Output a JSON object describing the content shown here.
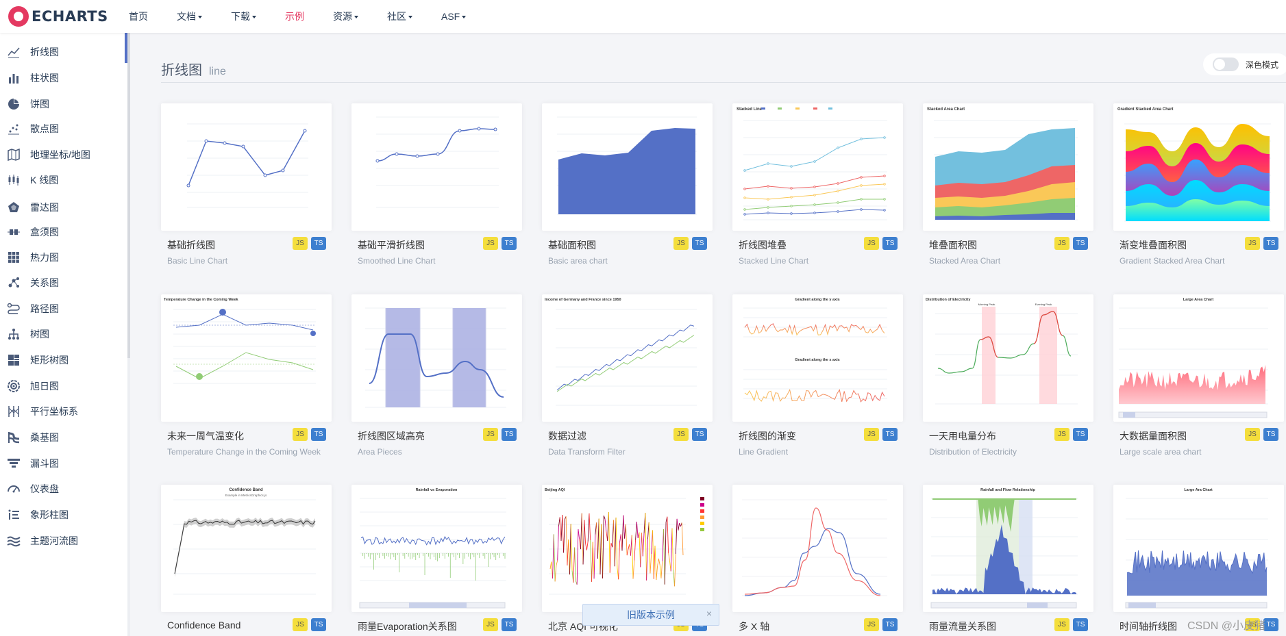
{
  "brand": {
    "logo_text": "ECHARTS",
    "accent": "#e43961",
    "chart_blue": "#5470c6"
  },
  "nav": [
    {
      "label": "首页",
      "has_menu": false,
      "active": false
    },
    {
      "label": "文档",
      "has_menu": true,
      "active": false
    },
    {
      "label": "下载",
      "has_menu": true,
      "active": false
    },
    {
      "label": "示例",
      "has_menu": false,
      "active": true
    },
    {
      "label": "资源",
      "has_menu": true,
      "active": false
    },
    {
      "label": "社区",
      "has_menu": true,
      "active": false
    },
    {
      "label": "ASF",
      "has_menu": true,
      "active": false
    }
  ],
  "sidebar": {
    "items": [
      {
        "label": "折线图",
        "icon": "line-chart-icon"
      },
      {
        "label": "柱状图",
        "icon": "bar-chart-icon"
      },
      {
        "label": "饼图",
        "icon": "pie-chart-icon"
      },
      {
        "label": "散点图",
        "icon": "scatter-chart-icon"
      },
      {
        "label": "地理坐标/地图",
        "icon": "map-icon"
      },
      {
        "label": "K 线图",
        "icon": "candlestick-icon"
      },
      {
        "label": "雷达图",
        "icon": "radar-icon"
      },
      {
        "label": "盒须图",
        "icon": "boxplot-icon"
      },
      {
        "label": "热力图",
        "icon": "heatmap-icon"
      },
      {
        "label": "关系图",
        "icon": "graph-icon"
      },
      {
        "label": "路径图",
        "icon": "lines-icon"
      },
      {
        "label": "树图",
        "icon": "tree-icon"
      },
      {
        "label": "矩形树图",
        "icon": "treemap-icon"
      },
      {
        "label": "旭日图",
        "icon": "sunburst-icon"
      },
      {
        "label": "平行坐标系",
        "icon": "parallel-icon"
      },
      {
        "label": "桑基图",
        "icon": "sankey-icon"
      },
      {
        "label": "漏斗图",
        "icon": "funnel-icon"
      },
      {
        "label": "仪表盘",
        "icon": "gauge-icon"
      },
      {
        "label": "象形柱图",
        "icon": "pictorial-bar-icon"
      },
      {
        "label": "主题河流图",
        "icon": "theme-river-icon"
      }
    ]
  },
  "section": {
    "title": "折线图",
    "subtitle": "line"
  },
  "dark_mode": {
    "label": "深色模式",
    "enabled": false
  },
  "badges": {
    "js": "JS",
    "ts": "TS"
  },
  "cards": [
    {
      "title": "基础折线图",
      "subtitle": "Basic Line Chart",
      "thumb": "basic-line"
    },
    {
      "title": "基础平滑折线图",
      "subtitle": "Smoothed Line Chart",
      "thumb": "smooth-line"
    },
    {
      "title": "基础面积图",
      "subtitle": "Basic area chart",
      "thumb": "basic-area"
    },
    {
      "title": "折线图堆叠",
      "subtitle": "Stacked Line Chart",
      "thumb": "stacked-line"
    },
    {
      "title": "堆叠面积图",
      "subtitle": "Stacked Area Chart",
      "thumb": "stacked-area"
    },
    {
      "title": "渐变堆叠面积图",
      "subtitle": "Gradient Stacked Area Chart",
      "thumb": "gradient-stacked"
    },
    {
      "title": "未来一周气温变化",
      "subtitle": "Temperature Change in the Coming Week",
      "thumb": "temperature"
    },
    {
      "title": "折线图区域高亮",
      "subtitle": "Area Pieces",
      "thumb": "area-pieces"
    },
    {
      "title": "数据过滤",
      "subtitle": "Data Transform Filter",
      "thumb": "data-filter"
    },
    {
      "title": "折线图的渐变",
      "subtitle": "Line Gradient",
      "thumb": "line-gradient"
    },
    {
      "title": "一天用电量分布",
      "subtitle": "Distribution of Electricity",
      "thumb": "electricity"
    },
    {
      "title": "大数据量面积图",
      "subtitle": "Large scale area chart",
      "thumb": "large-area"
    },
    {
      "title": "Confidence Band",
      "subtitle": "",
      "thumb": "confidence-band"
    },
    {
      "title": "雨量Evaporation关系图",
      "subtitle": "",
      "thumb": "rainfall-evaporation"
    },
    {
      "title": "北京 AQI 可视化",
      "subtitle": "",
      "thumb": "beijing-aqi"
    },
    {
      "title": "多 X 轴",
      "subtitle": "",
      "thumb": "multiple-x"
    },
    {
      "title": "雨量流量关系图",
      "subtitle": "",
      "thumb": "rainfall-flow"
    },
    {
      "title": "时间轴折线图",
      "subtitle": "",
      "thumb": "time-axis"
    }
  ],
  "thumb_text": {
    "stacked_line_title": "Stacked Line",
    "stacked_area_title": "Stacked Area Chart",
    "gradient_stacked_title": "Gradient Stacked Area Chart",
    "temperature_title": "Temperature Change in the Coming Week",
    "data_filter_title": "Income of Germany and France since 1950",
    "line_gradient_y": "Gradient along the y axis",
    "line_gradient_x": "Gradient along the x axis",
    "electricity_title": "Distribution of Electricity",
    "electricity_morning": "Morning Peak",
    "electricity_evening": "Evening Peak",
    "large_area_title": "Large Area Chart",
    "confidence_title": "Confidence Band",
    "confidence_sub": "Example in MetricsGraphics.js",
    "rainfall_evap_title": "Rainfall vs Evaporation",
    "aqi_title": "Beijing AQI",
    "rainfall_flow_title": "Rainfall and Flow Relationship",
    "time_axis_title": "Large Ara Chart"
  },
  "old_version": {
    "label": "旧版本示例",
    "close": "×"
  },
  "watermark": "CSDN @小皮猪"
}
